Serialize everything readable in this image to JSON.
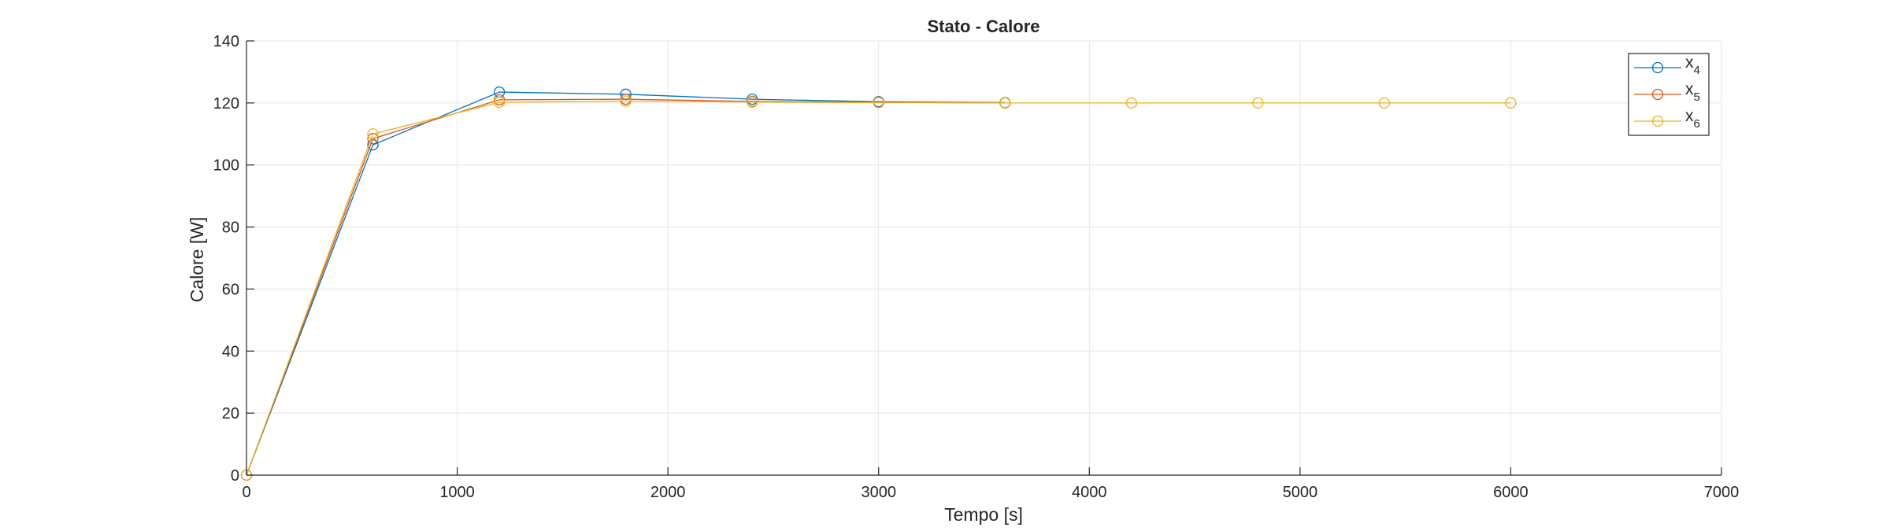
{
  "chart_data": {
    "type": "line",
    "title": "Stato - Calore",
    "xlabel": "Tempo [s]",
    "ylabel": "Calore [W]",
    "xlim": [
      0,
      7000
    ],
    "ylim": [
      0,
      140
    ],
    "xticks": [
      0,
      1000,
      2000,
      3000,
      4000,
      5000,
      6000,
      7000
    ],
    "yticks": [
      0,
      20,
      40,
      60,
      80,
      100,
      120,
      140
    ],
    "grid": true,
    "legend_position": "top-right",
    "marker": "circle",
    "series": [
      {
        "name": "x",
        "subscript": "4",
        "color": "#0072BD",
        "x": [
          0,
          600,
          1200,
          1800,
          2400,
          3000,
          3600
        ],
        "y": [
          0,
          106.5,
          123.5,
          122.8,
          121.2,
          120.4,
          120.1
        ]
      },
      {
        "name": "x",
        "subscript": "5",
        "color": "#D95319",
        "x": [
          0,
          600,
          1200,
          1800,
          2400,
          3000,
          3600
        ],
        "y": [
          0,
          108.5,
          121.0,
          121.2,
          120.5,
          120.2,
          120.0
        ]
      },
      {
        "name": "x",
        "subscript": "6",
        "color": "#EDB120",
        "x": [
          0,
          600,
          1200,
          1800,
          2400,
          3000,
          3600,
          4200,
          4800,
          5400,
          6000
        ],
        "y": [
          0,
          110.0,
          120.2,
          120.6,
          120.3,
          120.1,
          120.0,
          120.0,
          120.0,
          120.0,
          120.0
        ]
      }
    ]
  }
}
